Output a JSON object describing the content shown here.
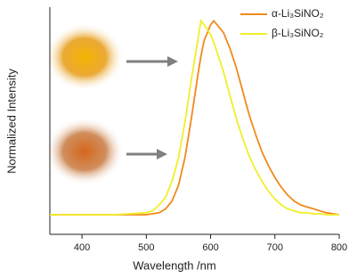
{
  "chart_data": {
    "type": "line",
    "x_label": "Wavelength /nm",
    "y_label": "Normalized Intensity",
    "x": [
      350,
      400,
      450,
      500,
      510,
      520,
      530,
      540,
      550,
      560,
      570,
      580,
      585,
      590,
      600,
      605,
      610,
      620,
      630,
      640,
      650,
      660,
      670,
      680,
      690,
      700,
      710,
      720,
      730,
      740,
      750,
      760,
      770,
      780,
      790,
      800
    ],
    "series": [
      {
        "name": "α-Li₃SiNO₂",
        "color": "#f08a1c",
        "values": [
          0.01,
          0.01,
          0.01,
          0.01,
          0.015,
          0.02,
          0.04,
          0.08,
          0.16,
          0.3,
          0.5,
          0.72,
          0.82,
          0.9,
          0.98,
          1.0,
          0.98,
          0.94,
          0.86,
          0.76,
          0.64,
          0.52,
          0.42,
          0.33,
          0.26,
          0.2,
          0.15,
          0.11,
          0.08,
          0.06,
          0.05,
          0.04,
          0.03,
          0.02,
          0.015,
          0.01
        ]
      },
      {
        "name": "β-Li₃SiNO₂",
        "color": "#f2ee2a",
        "values": [
          0.01,
          0.01,
          0.01,
          0.02,
          0.03,
          0.06,
          0.1,
          0.18,
          0.3,
          0.48,
          0.7,
          0.9,
          1.0,
          0.98,
          0.93,
          0.89,
          0.84,
          0.74,
          0.62,
          0.5,
          0.4,
          0.31,
          0.24,
          0.18,
          0.13,
          0.09,
          0.06,
          0.04,
          0.03,
          0.02,
          0.02,
          0.015,
          0.015,
          0.01,
          0.01,
          0.01
        ]
      }
    ],
    "xlim": [
      350,
      800
    ],
    "xticks": [
      400,
      500,
      600,
      700,
      800
    ],
    "ylim": [
      -0.09,
      1.07
    ]
  }
}
